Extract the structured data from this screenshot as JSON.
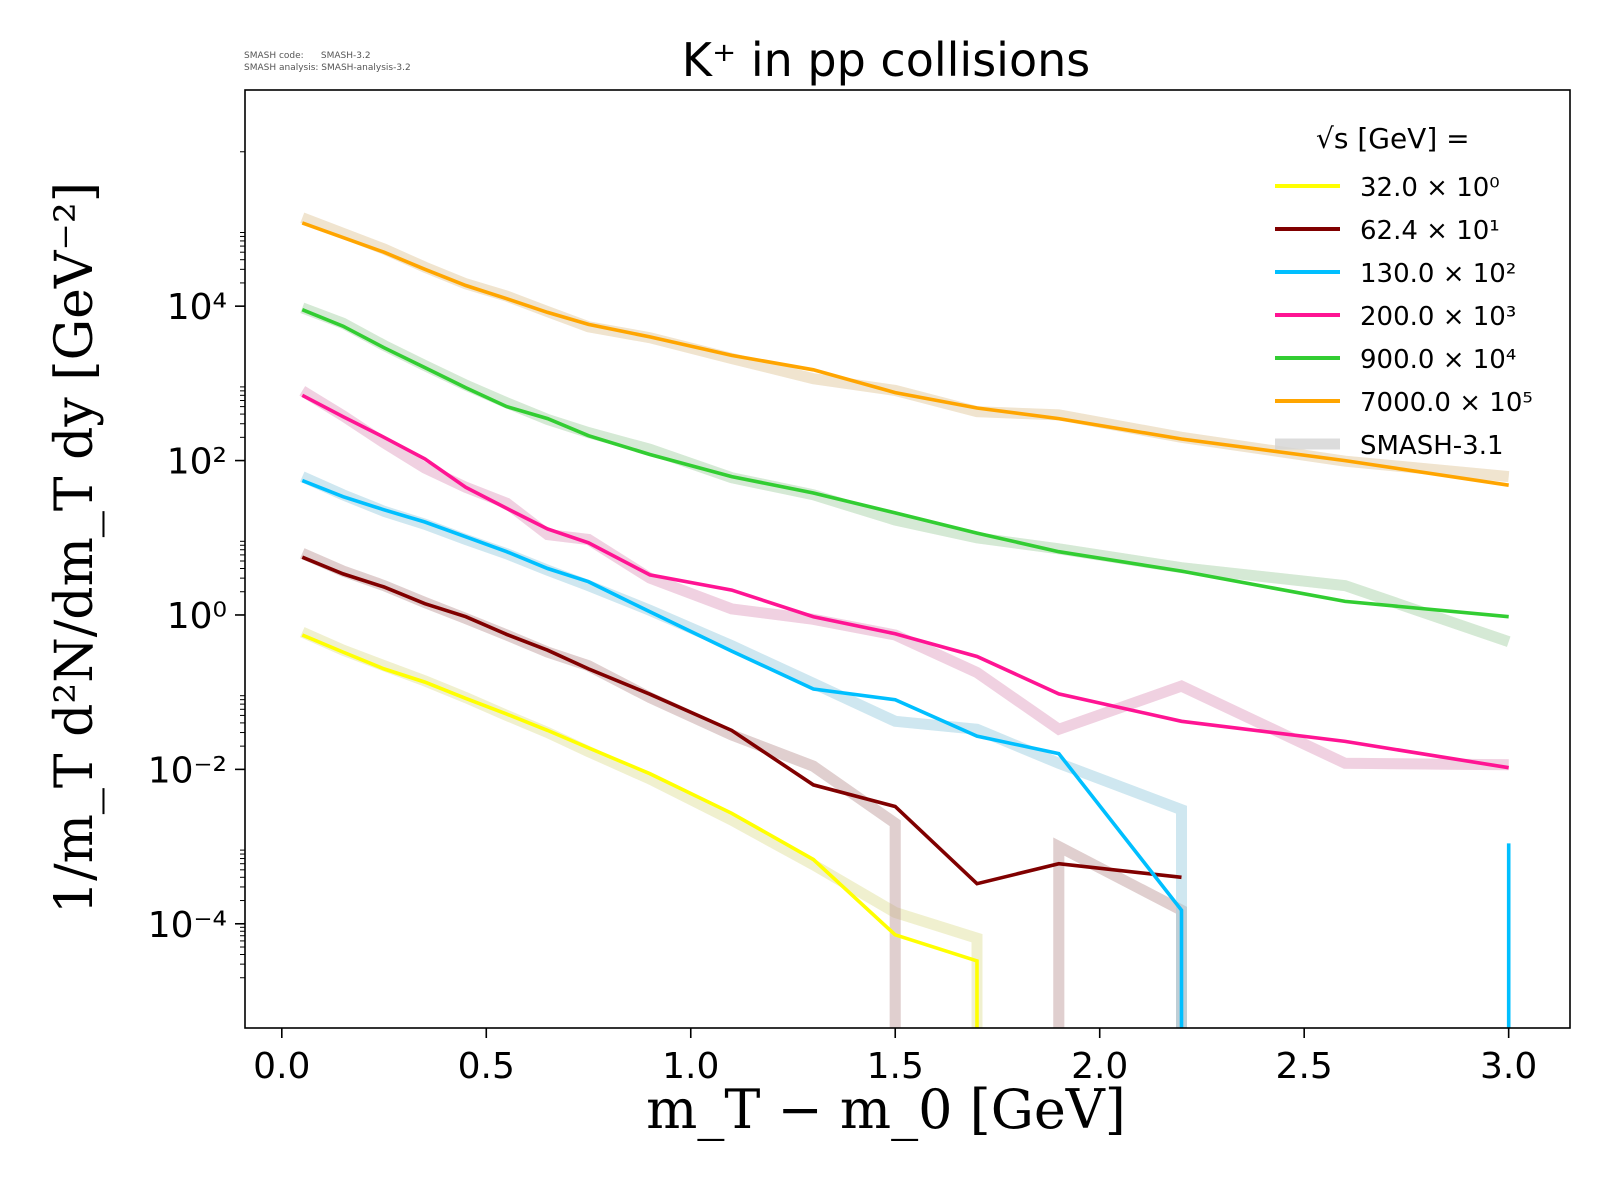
{
  "meta": {
    "code_label": "SMASH code:      SMASH-3.2",
    "analysis_label": "SMASH analysis: SMASH-analysis-3.2"
  },
  "chart_data": {
    "type": "line",
    "title": "K⁺ in pp collisions",
    "xlabel": "m_T − m_0 [GeV]",
    "ylabel": "1/m_T d²N/dm_T dy [GeV⁻²]",
    "xlim": [
      -0.09,
      3.15
    ],
    "ylim_log10": [
      -5.35,
      6.8
    ],
    "y_scale": "log",
    "grid": false,
    "legend_position": "top-right",
    "legend_title": "√s [GeV] =",
    "x_ticks": [
      0.0,
      0.5,
      1.0,
      1.5,
      2.0,
      2.5,
      3.0
    ],
    "x_tick_labels": [
      "0.0",
      "0.5",
      "1.0",
      "1.5",
      "2.0",
      "2.5",
      "3.0"
    ],
    "y_ticks_exponent": [
      4,
      2,
      0,
      -2,
      -4
    ],
    "y_tick_labels": [
      "10⁴",
      "10²",
      "10⁰",
      "10⁻²",
      "10⁻⁴"
    ],
    "series": [
      {
        "name": "32.0 × 10⁰",
        "color": "#ffff00",
        "x": [
          0.05,
          0.15,
          0.25,
          0.35,
          0.45,
          0.55,
          0.65,
          0.75,
          0.9,
          1.1,
          1.3,
          1.5,
          1.7,
          1.7
        ],
        "y": [
          0.55,
          0.33,
          0.2,
          0.135,
          0.083,
          0.052,
          0.032,
          0.019,
          0.0088,
          0.0027,
          0.00068,
          7.2e-05,
          3.3e-05,
          1e-06
        ]
      },
      {
        "name": "62.4 × 10¹",
        "color": "#800000",
        "x": [
          0.05,
          0.15,
          0.25,
          0.35,
          0.45,
          0.55,
          0.65,
          0.75,
          0.9,
          1.1,
          1.3,
          1.5,
          1.7,
          1.9,
          2.2
        ],
        "y": [
          5.6,
          3.4,
          2.3,
          1.4,
          0.95,
          0.56,
          0.35,
          0.2,
          0.094,
          0.032,
          0.0063,
          0.0033,
          0.00033,
          0.0006,
          0.0004
        ]
      },
      {
        "name": "130.0 × 10²",
        "color": "#00bfff",
        "x": [
          0.05,
          0.15,
          0.25,
          0.35,
          0.45,
          0.55,
          0.65,
          0.75,
          0.9,
          1.1,
          1.3,
          1.5,
          1.7,
          1.9,
          2.2,
          2.2,
          3.0,
          3.0
        ],
        "y": [
          55,
          34,
          23,
          16,
          10.3,
          6.6,
          4.0,
          2.7,
          1.1,
          0.34,
          0.11,
          0.08,
          0.027,
          0.016,
          0.00015,
          1e-06,
          1e-06,
          0.0011
        ]
      },
      {
        "name": "200.0 × 10³",
        "color": "#ff1493",
        "x": [
          0.05,
          0.15,
          0.25,
          0.35,
          0.45,
          0.55,
          0.65,
          0.75,
          0.9,
          1.1,
          1.3,
          1.5,
          1.7,
          1.9,
          2.2,
          2.6,
          3.0
        ],
        "y": [
          700,
          370,
          200,
          105,
          45,
          24,
          13,
          8.6,
          3.3,
          2.1,
          0.95,
          0.57,
          0.29,
          0.095,
          0.042,
          0.023,
          0.0105
        ]
      },
      {
        "name": "900.0 × 10⁴",
        "color": "#32cd32",
        "x": [
          0.05,
          0.15,
          0.25,
          0.35,
          0.45,
          0.55,
          0.65,
          0.75,
          0.9,
          1.1,
          1.3,
          1.5,
          1.7,
          1.9,
          2.2,
          2.6,
          3.0
        ],
        "y": [
          9000,
          5500,
          2900,
          1600,
          880,
          500,
          350,
          210,
          120,
          62,
          38,
          21,
          11.5,
          6.6,
          3.7,
          1.5,
          0.95
        ]
      },
      {
        "name": "7000.0 × 10⁵",
        "color": "#ffa500",
        "x": [
          0.05,
          0.25,
          0.35,
          0.45,
          0.55,
          0.65,
          0.75,
          0.9,
          1.1,
          1.3,
          1.5,
          1.7,
          1.9,
          2.2,
          2.6,
          3.0
        ],
        "y": [
          120000,
          50000,
          30000,
          18500,
          12500,
          8300,
          5800,
          4000,
          2300,
          1500,
          760,
          480,
          350,
          190,
          100,
          48
        ]
      }
    ],
    "reference_label": "SMASH-3.1",
    "reference_color": "#d3d3d3",
    "reference_series": [
      {
        "color": "#ffff00",
        "x": [
          0.05,
          0.15,
          0.25,
          0.35,
          0.45,
          0.55,
          0.65,
          0.75,
          0.9,
          1.1,
          1.3,
          1.5,
          1.7,
          1.7
        ],
        "y": [
          0.6,
          0.35,
          0.22,
          0.14,
          0.085,
          0.05,
          0.03,
          0.017,
          0.0075,
          0.0022,
          0.00058,
          0.00014,
          6.5e-05,
          1e-06
        ]
      },
      {
        "color": "#800000",
        "x": [
          0.05,
          0.15,
          0.25,
          0.35,
          0.45,
          0.55,
          0.65,
          0.75,
          0.9,
          1.1,
          1.3,
          1.5,
          1.5,
          1.9,
          1.9,
          2.2,
          2.2
        ],
        "y": [
          6.3,
          3.7,
          2.4,
          1.45,
          0.9,
          0.55,
          0.33,
          0.22,
          0.085,
          0.028,
          0.011,
          0.002,
          1e-06,
          1e-06,
          0.001,
          0.00015,
          1e-06
        ]
      },
      {
        "color": "#00bfff",
        "x": [
          0.05,
          0.15,
          0.25,
          0.35,
          0.45,
          0.55,
          0.65,
          0.75,
          0.9,
          1.1,
          1.3,
          1.5,
          1.7,
          1.9,
          2.2,
          2.2
        ],
        "y": [
          62,
          36,
          22,
          15,
          9.5,
          6.2,
          3.8,
          2.4,
          1.15,
          0.4,
          0.13,
          0.042,
          0.033,
          0.012,
          0.003,
          1e-06
        ]
      },
      {
        "color": "#ff1493",
        "x": [
          0.05,
          0.15,
          0.25,
          0.35,
          0.45,
          0.55,
          0.65,
          0.75,
          0.9,
          1.1,
          1.3,
          1.5,
          1.7,
          1.9,
          2.2,
          2.6,
          3.0
        ],
        "y": [
          800,
          380,
          170,
          80,
          45,
          28,
          11,
          9.5,
          3.0,
          1.2,
          0.88,
          0.55,
          0.18,
          0.033,
          0.12,
          0.012,
          0.0115
        ]
      },
      {
        "color": "#32cd32",
        "x": [
          0.05,
          0.15,
          0.25,
          0.35,
          0.45,
          0.55,
          0.65,
          0.75,
          0.9,
          1.1,
          1.3,
          1.5,
          1.7,
          1.9,
          2.2,
          2.6,
          3.0
        ],
        "y": [
          9500,
          6000,
          3100,
          1700,
          950,
          560,
          340,
          230,
          140,
          60,
          36,
          17,
          10,
          7.2,
          4.1,
          2.4,
          0.45
        ]
      },
      {
        "color": "#ffa500",
        "x": [
          0.05,
          0.25,
          0.35,
          0.45,
          0.55,
          0.65,
          0.75,
          0.9,
          1.1,
          1.3,
          1.5,
          1.7,
          1.9,
          2.2,
          2.6,
          3.0
        ],
        "y": [
          140000,
          55000,
          32000,
          19500,
          13500,
          8500,
          5400,
          3900,
          2100,
          1150,
          810,
          430,
          390,
          200,
          98,
          62
        ]
      }
    ]
  }
}
